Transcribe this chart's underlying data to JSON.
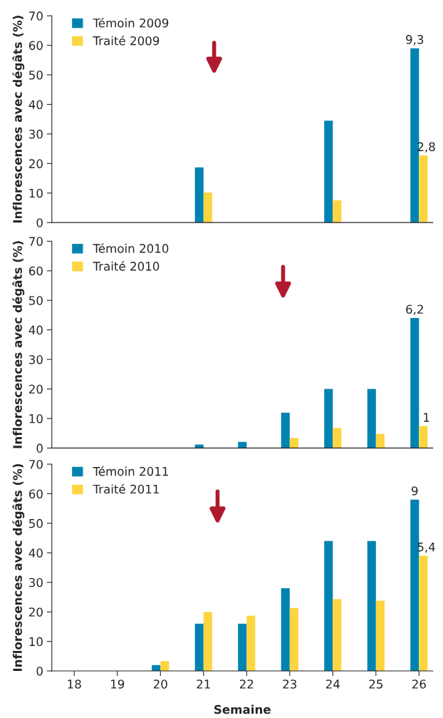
{
  "chart_data": [
    {
      "type": "bar",
      "categories": [
        "18",
        "19",
        "20",
        "21",
        "22",
        "23",
        "24",
        "25",
        "26"
      ],
      "ylabel": "Inflorescences avec dégâts (%)",
      "ylim": [
        0,
        70
      ],
      "yticks": [
        0,
        10,
        20,
        30,
        40,
        50,
        60,
        70
      ],
      "legend": "top left",
      "tick_labels": "y",
      "series": [
        {
          "name": "Témoin 2009",
          "color": "#0083b0",
          "values": [
            null,
            null,
            null,
            18.7,
            null,
            null,
            34.5,
            null,
            59
          ]
        },
        {
          "name": "Traité 2009",
          "color": "#fdd540",
          "values": [
            null,
            null,
            null,
            10.2,
            null,
            null,
            7.5,
            null,
            22.7
          ]
        }
      ],
      "annotations": [
        {
          "text": "9,3",
          "x": "26",
          "y": 59
        },
        {
          "text": "2,8",
          "x": "26",
          "y": 22.7
        }
      ]
    },
    {
      "type": "bar",
      "categories": [
        "18",
        "19",
        "20",
        "21",
        "22",
        "23",
        "24",
        "25",
        "26"
      ],
      "ylabel": "Inflorescences avec dégâts (%)",
      "ylim": [
        0,
        70
      ],
      "yticks": [
        0,
        10,
        20,
        30,
        40,
        50,
        60,
        70
      ],
      "legend": "top left",
      "tick_labels": "y",
      "series": [
        {
          "name": "Témoin 2010",
          "color": "#0083b0",
          "values": [
            null,
            null,
            null,
            1.2,
            2.1,
            12,
            20,
            20,
            44
          ]
        },
        {
          "name": "Traité 2010",
          "color": "#fdd540",
          "values": [
            null,
            null,
            null,
            null,
            null,
            3.4,
            6.8,
            4.8,
            7.4
          ]
        }
      ],
      "annotations": [
        {
          "text": "6,2",
          "x": "26",
          "y": 44
        },
        {
          "text": "1",
          "x": "26",
          "y": 7.4
        }
      ]
    },
    {
      "type": "bar",
      "categories": [
        "18",
        "19",
        "20",
        "21",
        "22",
        "23",
        "24",
        "25",
        "26"
      ],
      "xlabel": "Semaine",
      "ylabel": "Inflorescences avec dégâts (%)",
      "ylim": [
        0,
        70
      ],
      "yticks": [
        0,
        10,
        20,
        30,
        40,
        50,
        60,
        70
      ],
      "legend": "top left",
      "series": [
        {
          "name": "Témoin 2011",
          "color": "#0083b0",
          "values": [
            null,
            null,
            2,
            16,
            16,
            28,
            44,
            44,
            58
          ]
        },
        {
          "name": "Traité 2011",
          "color": "#fdd540",
          "values": [
            null,
            null,
            3.3,
            20,
            18.7,
            21.3,
            24.3,
            23.8,
            39
          ]
        }
      ],
      "annotations": [
        {
          "text": "9",
          "x": "26",
          "y": 58
        },
        {
          "text": "5,4",
          "x": "26",
          "y": 39
        }
      ]
    }
  ]
}
